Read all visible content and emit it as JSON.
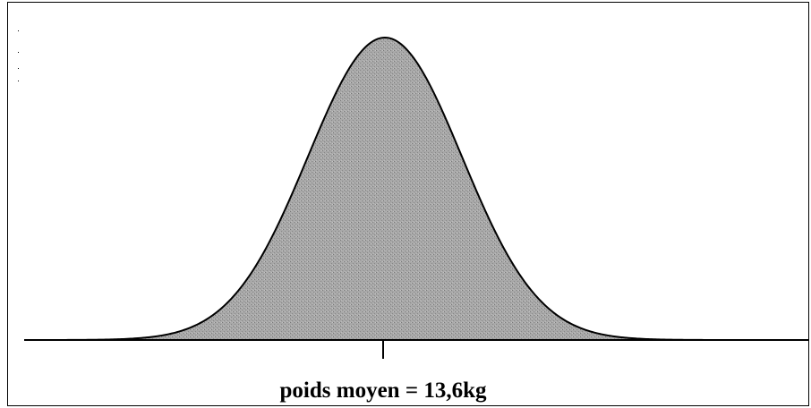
{
  "label": "poids moyen = 13,6kg"
}
